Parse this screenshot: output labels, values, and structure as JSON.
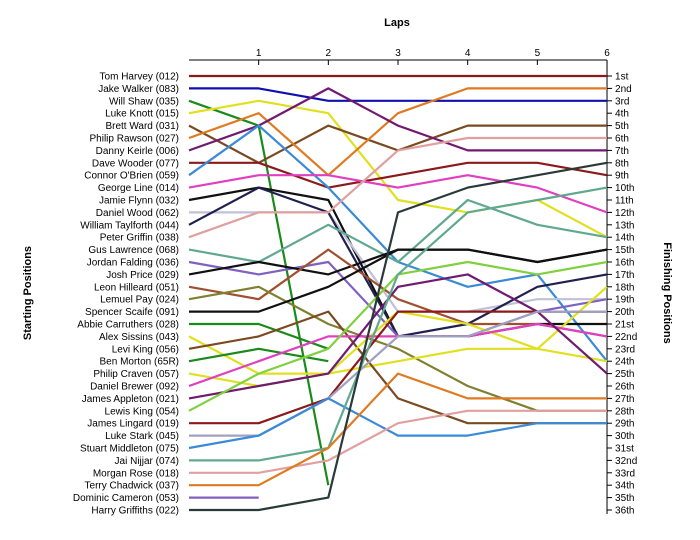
{
  "chart_data": {
    "type": "line",
    "title": "Laps",
    "ylabel_left": "Starting Positions",
    "ylabel_right": "Finishing Positions",
    "x": [
      0,
      1,
      2,
      3,
      4,
      5,
      6
    ],
    "x_tick_labels": [
      "1",
      "2",
      "3",
      "4",
      "5",
      "6"
    ],
    "ylim": [
      1,
      36
    ],
    "y_inverted": true,
    "grid": false,
    "legend": "none",
    "drivers": [
      "Tom Harvey (012)",
      "Jake Walker (083)",
      "Will Shaw (035)",
      "Luke Knott (015)",
      "Brett Ward (031)",
      "Philip Rawson (027)",
      "Danny Keirle (006)",
      "Dave Wooder (077)",
      "Connor O'Brien (059)",
      "George Line (014)",
      "Jamie Flynn (032)",
      "Daniel Wood (062)",
      "William Taylforth (044)",
      "Peter Griffin (038)",
      "Gus Lawrence (068)",
      "Jordan Falding (036)",
      "Josh Price (029)",
      "Leon Hilleard (051)",
      "Lemuel Pay (024)",
      "Spencer Scaife (091)",
      "Abbie Carruthers (028)",
      "Alex Sissins (043)",
      "Levi King (056)",
      "Ben Morton (65R)",
      "Philip Craven (057)",
      "Daniel Brewer (092)",
      "James Appleton (021)",
      "Lewis King (054)",
      "James Lingard (019)",
      "Luke Stark (045)",
      "Stuart Middleton (075)",
      "Jai Nijjar (074)",
      "Morgan Rose (018)",
      "Terry Chadwick (037)",
      "Dominic Cameron (053)",
      "Harry Griffiths (022)"
    ],
    "finishing_labels": [
      "1st",
      "2nd",
      "3rd",
      "4th",
      "5th",
      "6th",
      "7th",
      "8th",
      "9th",
      "10th",
      "11th",
      "12th",
      "13th",
      "14th",
      "15th",
      "16th",
      "17th",
      "18th",
      "19th",
      "20th",
      "21st",
      "22nd",
      "23rd",
      "24th",
      "25th",
      "26th",
      "27th",
      "28th",
      "29th",
      "30th",
      "31st",
      "32nd",
      "33rd",
      "34th",
      "35th",
      "36th"
    ],
    "series": [
      {
        "color": "#8b1a1a",
        "values": [
          1,
          1,
          1,
          1,
          1,
          1,
          1
        ]
      },
      {
        "color": "#1010b0",
        "values": [
          2,
          2,
          3,
          3,
          3,
          3,
          3
        ]
      },
      {
        "color": "#1a8a1a",
        "values": [
          3,
          5,
          34,
          null,
          null,
          null,
          null
        ]
      },
      {
        "color": "#e0e020",
        "values": [
          4,
          3,
          4,
          11,
          12,
          11,
          14
        ]
      },
      {
        "color": "#7a4a20",
        "values": [
          5,
          8,
          5,
          7,
          5,
          5,
          5
        ]
      },
      {
        "color": "#e07a20",
        "values": [
          6,
          4,
          9,
          4,
          2,
          2,
          2
        ]
      },
      {
        "color": "#701a70",
        "values": [
          7,
          5,
          2,
          5,
          7,
          7,
          7
        ]
      },
      {
        "color": "#8b1a1a",
        "values": [
          8,
          8,
          10,
          9,
          8,
          8,
          9
        ]
      },
      {
        "color": "#3a8ad8",
        "values": [
          9,
          5,
          10,
          16,
          18,
          17,
          24
        ]
      },
      {
        "color": "#e040c0",
        "values": [
          10,
          9,
          9,
          10,
          9,
          10,
          12
        ]
      },
      {
        "color": "#101010",
        "values": [
          11,
          10,
          11,
          22,
          22,
          21,
          21
        ]
      },
      {
        "color": "#c0c0d8",
        "values": [
          12,
          12,
          12,
          20,
          20,
          19,
          19
        ]
      },
      {
        "color": "#202050",
        "values": [
          13,
          10,
          12,
          22,
          21,
          18,
          17
        ]
      },
      {
        "color": "#e0a0a0",
        "values": [
          14,
          12,
          12,
          7,
          6,
          6,
          6
        ]
      },
      {
        "color": "#60a890",
        "values": [
          15,
          16,
          13,
          16,
          11,
          13,
          14
        ]
      },
      {
        "color": "#8060c0",
        "values": [
          16,
          17,
          16,
          22,
          22,
          20,
          19
        ]
      },
      {
        "color": "#101010",
        "values": [
          17,
          16,
          17,
          15,
          15,
          16,
          15
        ]
      },
      {
        "color": "#a05030",
        "values": [
          18,
          19,
          15,
          19,
          21,
          21,
          22
        ]
      },
      {
        "color": "#808030",
        "values": [
          19,
          18,
          21,
          23,
          26,
          28,
          28
        ]
      },
      {
        "color": "#101010",
        "values": [
          20,
          20,
          18,
          15,
          15,
          16,
          15
        ]
      },
      {
        "color": "#1a8a1a",
        "values": [
          21,
          21,
          23,
          null,
          null,
          null,
          null
        ]
      },
      {
        "color": "#e0e020",
        "values": [
          22,
          25,
          25,
          24,
          23,
          23,
          18
        ]
      },
      {
        "color": "#7a4a20",
        "values": [
          23,
          22,
          20,
          27,
          29,
          29,
          29
        ]
      },
      {
        "color": "#1a8a1a",
        "values": [
          24,
          23,
          24,
          null,
          null,
          null,
          null
        ]
      },
      {
        "color": "#e0e020",
        "values": [
          25,
          26,
          25,
          20,
          21,
          23,
          24
        ]
      },
      {
        "color": "#e040c0",
        "values": [
          26,
          24,
          22,
          22,
          22,
          21,
          22
        ]
      },
      {
        "color": "#701a70",
        "values": [
          27,
          26,
          25,
          18,
          17,
          20,
          25
        ]
      },
      {
        "color": "#80d040",
        "values": [
          28,
          25,
          23,
          17,
          16,
          17,
          16
        ]
      },
      {
        "color": "#8b1a1a",
        "values": [
          29,
          29,
          27,
          20,
          20,
          20,
          20
        ]
      },
      {
        "color": "#a0a0c0",
        "values": [
          30,
          30,
          27,
          22,
          22,
          20,
          20
        ]
      },
      {
        "color": "#3a8ad8",
        "values": [
          31,
          30,
          27,
          30,
          30,
          29,
          29
        ]
      },
      {
        "color": "#60a890",
        "values": [
          32,
          32,
          31,
          17,
          12,
          11,
          10
        ]
      },
      {
        "color": "#e0a0a0",
        "values": [
          33,
          33,
          32,
          29,
          28,
          28,
          28
        ]
      },
      {
        "color": "#e07a20",
        "values": [
          34,
          34,
          31,
          25,
          27,
          27,
          27
        ]
      },
      {
        "color": "#8060c0",
        "values": [
          35,
          35,
          null,
          null,
          null,
          null,
          null
        ]
      },
      {
        "color": "#2a3a3a",
        "values": [
          36,
          36,
          35,
          12,
          10,
          9,
          8
        ]
      }
    ]
  }
}
